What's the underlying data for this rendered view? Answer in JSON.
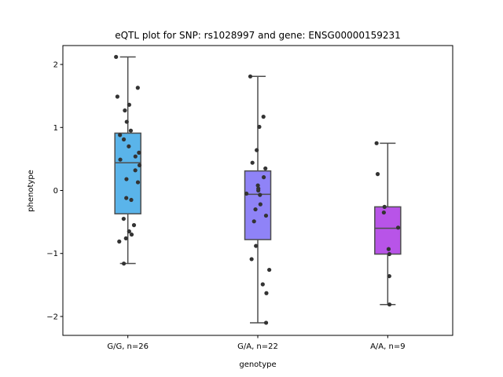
{
  "chart_data": {
    "type": "box",
    "title": "eQTL plot for SNP: rs1028997 and gene: ENSG00000159231",
    "xlabel": "genotype",
    "ylabel": "phenotype",
    "ylim": [
      -2.3,
      2.3
    ],
    "yticks": [
      2,
      1,
      0,
      -1,
      -2
    ],
    "grid": false,
    "legend": "none",
    "categories": [
      "G/G, n=26",
      "G/A, n=22",
      "A/A, n=9"
    ],
    "colors": [
      "#5ab4ea",
      "#8f83f7",
      "#b854e8"
    ],
    "point_color": "#333333",
    "boxes": [
      {
        "category": "G/G, n=26",
        "whisker_low": -1.16,
        "q1": -0.37,
        "median": 0.44,
        "q3": 0.91,
        "whisker_high": 2.12
      },
      {
        "category": "G/A, n=22",
        "whisker_low": -2.1,
        "q1": -0.78,
        "median": -0.06,
        "q3": 0.31,
        "whisker_high": 1.81
      },
      {
        "category": "A/A, n=9",
        "whisker_low": -1.81,
        "q1": -1.01,
        "median": -0.6,
        "q3": -0.26,
        "whisker_high": 0.75
      }
    ],
    "points": [
      {
        "category": "G/G, n=26",
        "values": [
          2.12,
          1.63,
          1.49,
          1.36,
          1.27,
          1.09,
          0.95,
          0.88,
          0.81,
          0.7,
          0.6,
          0.54,
          0.49,
          0.4,
          0.32,
          0.18,
          0.13,
          -0.12,
          -0.15,
          -0.45,
          -0.55,
          -0.65,
          -0.7,
          -0.76,
          -0.81,
          -1.16
        ]
      },
      {
        "category": "G/A, n=22",
        "values": [
          1.81,
          1.17,
          1.01,
          0.64,
          0.44,
          0.35,
          0.21,
          0.08,
          0.03,
          0.0,
          -0.05,
          -0.07,
          -0.22,
          -0.3,
          -0.4,
          -0.49,
          -0.88,
          -1.09,
          -1.26,
          -1.49,
          -1.63,
          -2.1
        ]
      },
      {
        "category": "A/A, n=9",
        "values": [
          0.75,
          0.26,
          -0.26,
          -0.35,
          -0.59,
          -0.93,
          -1.01,
          -1.36,
          -1.81
        ]
      }
    ]
  }
}
